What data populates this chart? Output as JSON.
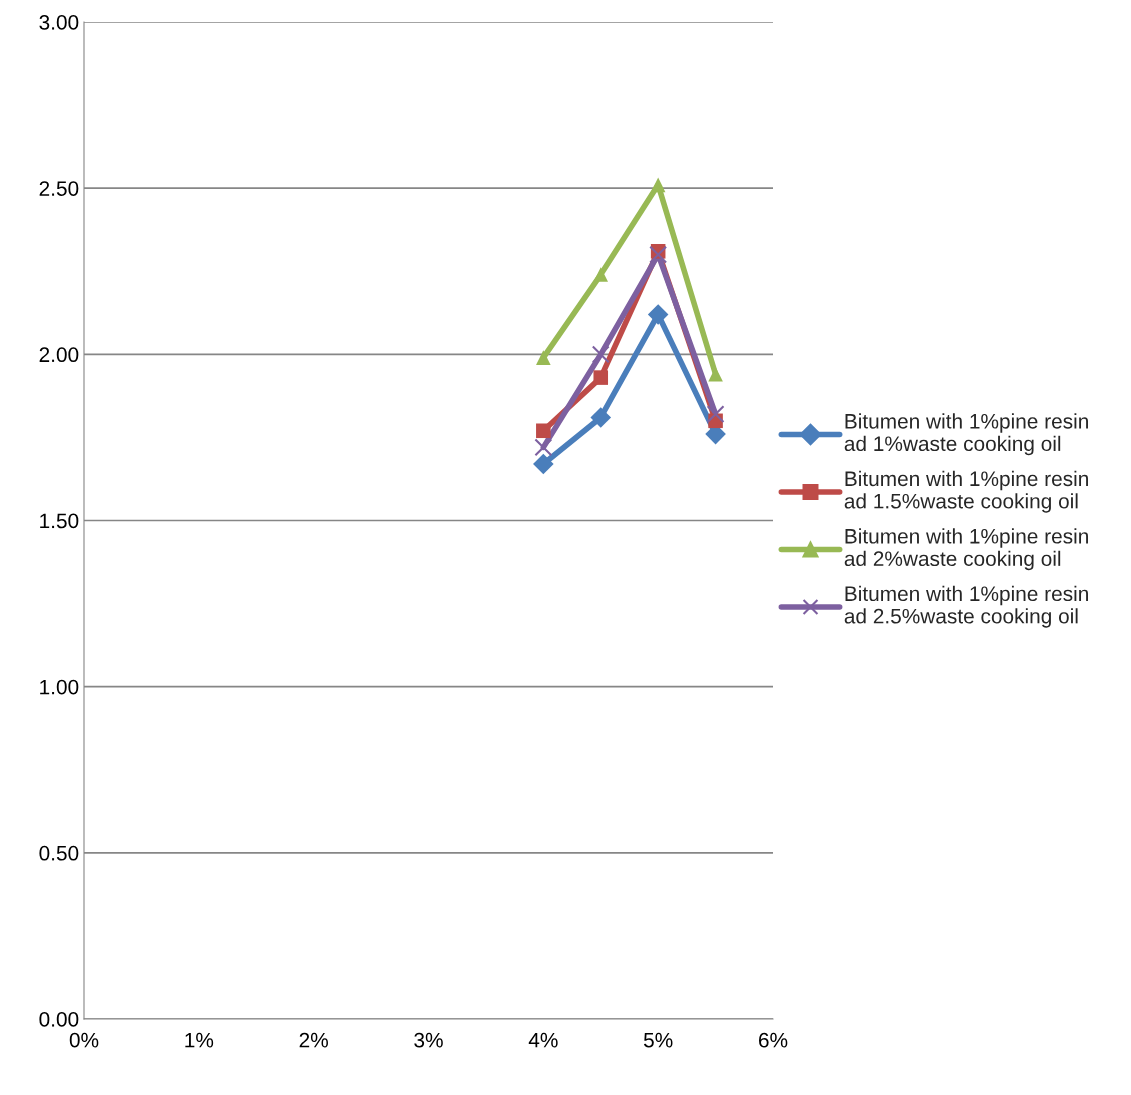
{
  "chart_data": {
    "type": "line",
    "xlim": [
      0,
      6
    ],
    "xticks": [
      {
        "value": 0,
        "label": "0%"
      },
      {
        "value": 1,
        "label": "1%"
      },
      {
        "value": 2,
        "label": "2%"
      },
      {
        "value": 3,
        "label": "3%"
      },
      {
        "value": 4,
        "label": "4%"
      },
      {
        "value": 5,
        "label": "5%"
      },
      {
        "value": 6,
        "label": "6%"
      }
    ],
    "ylim": [
      0,
      3
    ],
    "yticks": [
      {
        "value": 0,
        "label": "0.00"
      },
      {
        "value": 0.5,
        "label": "0.50"
      },
      {
        "value": 1,
        "label": "1.00"
      },
      {
        "value": 1.5,
        "label": "1.50"
      },
      {
        "value": 2,
        "label": "2.00"
      },
      {
        "value": 2.5,
        "label": "2.50"
      },
      {
        "value": 3,
        "label": "3.00"
      }
    ],
    "grid": "y",
    "legend": "right",
    "x": [
      4,
      4.5,
      5,
      5.5
    ],
    "series": [
      {
        "name": "Bitumen with 1%pine resin ad 1%waste cooking oil",
        "color": "#4a7ebb",
        "marker": "diamond",
        "values": [
          1.67,
          1.81,
          2.12,
          1.76
        ]
      },
      {
        "name": "Bitumen with 1%pine resin ad 1.5%waste cooking oil",
        "color": "#be4b48",
        "marker": "square",
        "values": [
          1.77,
          1.93,
          2.31,
          1.8
        ]
      },
      {
        "name": "Bitumen with 1%pine resin ad 2%waste cooking oil",
        "color": "#98b954",
        "marker": "triangle",
        "values": [
          1.99,
          2.24,
          2.51,
          1.94
        ]
      },
      {
        "name": "Bitumen with 1%pine resin ad 2.5%waste cooking oil",
        "color": "#7d60a0",
        "marker": "cross",
        "values": [
          1.72,
          2.0,
          2.3,
          1.82
        ]
      }
    ]
  }
}
